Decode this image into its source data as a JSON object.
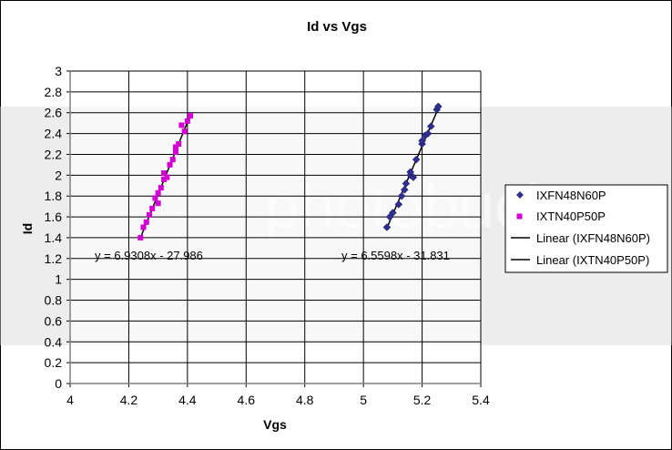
{
  "chart_data": {
    "type": "scatter",
    "title": "Id vs Vgs",
    "xlabel": "Vgs",
    "ylabel": "Id",
    "xlim": [
      4,
      5.4
    ],
    "ylim": [
      0,
      3
    ],
    "xticks": [
      "4",
      "4.2",
      "4.4",
      "4.6",
      "4.8",
      "5",
      "5.2",
      "5.4"
    ],
    "yticks": [
      "0",
      "0.2",
      "0.4",
      "0.6",
      "0.8",
      "1",
      "1.2",
      "1.4",
      "1.6",
      "1.8",
      "2",
      "2.2",
      "2.4",
      "2.6",
      "2.8",
      "3"
    ],
    "grid": true,
    "legend_position": "right",
    "series": [
      {
        "name": "IXFN48N60P",
        "marker": "diamond",
        "color": "#2e2e8f",
        "points": [
          [
            5.08,
            1.5
          ],
          [
            5.09,
            1.6
          ],
          [
            5.1,
            1.64
          ],
          [
            5.12,
            1.72
          ],
          [
            5.13,
            1.8
          ],
          [
            5.14,
            1.86
          ],
          [
            5.145,
            1.92
          ],
          [
            5.16,
            2.0
          ],
          [
            5.16,
            2.03
          ],
          [
            5.17,
            1.98
          ],
          [
            5.18,
            2.15
          ],
          [
            5.2,
            2.3
          ],
          [
            5.2,
            2.33
          ],
          [
            5.21,
            2.38
          ],
          [
            5.22,
            2.4
          ],
          [
            5.23,
            2.47
          ],
          [
            5.25,
            2.63
          ],
          [
            5.255,
            2.66
          ]
        ]
      },
      {
        "name": "IXTN40P50P",
        "marker": "square",
        "color": "#d400d4",
        "points": [
          [
            4.24,
            1.4
          ],
          [
            4.25,
            1.5
          ],
          [
            4.26,
            1.55
          ],
          [
            4.27,
            1.62
          ],
          [
            4.28,
            1.68
          ],
          [
            4.29,
            1.78
          ],
          [
            4.3,
            1.73
          ],
          [
            4.3,
            1.83
          ],
          [
            4.31,
            1.88
          ],
          [
            4.32,
            1.96
          ],
          [
            4.32,
            2.02
          ],
          [
            4.33,
            1.98
          ],
          [
            4.34,
            2.1
          ],
          [
            4.35,
            2.15
          ],
          [
            4.36,
            2.22
          ],
          [
            4.36,
            2.27
          ],
          [
            4.37,
            2.3
          ],
          [
            4.38,
            2.48
          ],
          [
            4.39,
            2.42
          ],
          [
            4.4,
            2.52
          ],
          [
            4.41,
            2.57
          ]
        ]
      }
    ],
    "trendlines": [
      {
        "name": "Linear (IXFN48N60P)",
        "slope": 6.5598,
        "intercept": -31.831,
        "x_range": [
          5.08,
          5.255
        ],
        "color": "#000000"
      },
      {
        "name": "Linear (IXTN40P50P)",
        "slope": 6.9308,
        "intercept": -27.986,
        "x_range": [
          4.24,
          4.41
        ],
        "color": "#000000"
      }
    ],
    "annotations": [
      {
        "text": "y = 6.9308x - 27.986"
      },
      {
        "text": "y = 6.5598x - 31.831"
      }
    ]
  },
  "legend": {
    "items": [
      "IXFN48N60P",
      "IXTN40P50P",
      "Linear (IXFN48N60P)",
      "Linear (IXTN40P50P)"
    ]
  },
  "watermark": {
    "text": "photobucket"
  }
}
